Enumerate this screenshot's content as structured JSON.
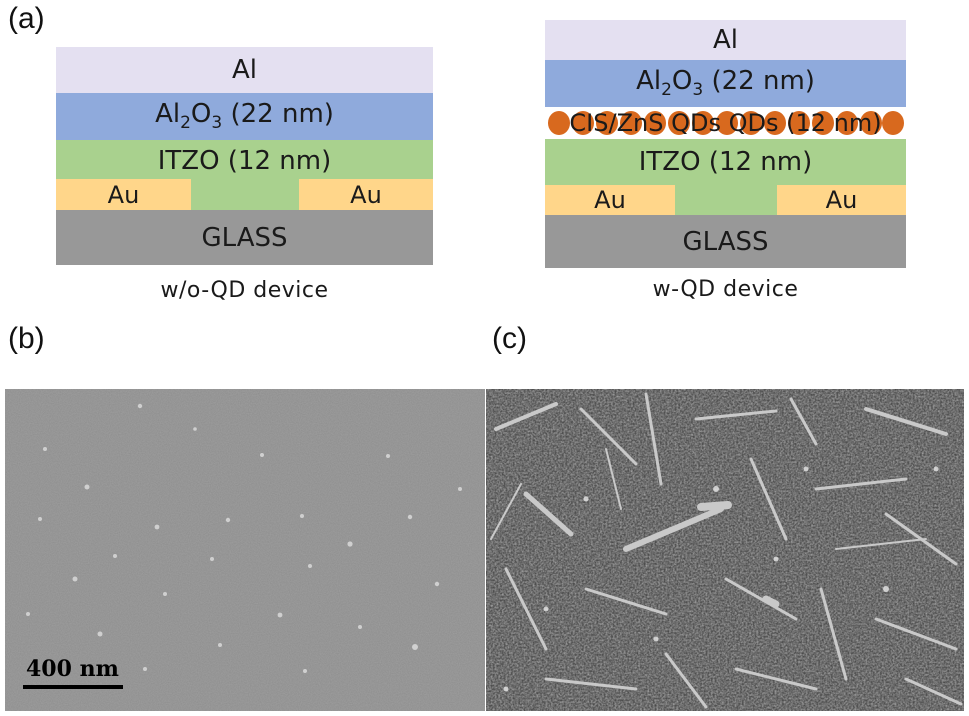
{
  "labels": {
    "a": "(a)",
    "b": "(b)",
    "c": "(c)"
  },
  "left_device": {
    "layers": {
      "al": "Al",
      "al2o3": {
        "pre": "Al",
        "sub1": "2",
        "mid": "O",
        "sub2": "3",
        "post": " (22 nm)"
      },
      "itzo": "ITZO (12 nm)",
      "au_left": "Au",
      "au_right": "Au",
      "glass": "GLASS"
    },
    "caption": "w/o-QD device"
  },
  "right_device": {
    "layers": {
      "al": "Al",
      "al2o3": {
        "pre": "Al",
        "sub1": "2",
        "mid": "O",
        "sub2": "3",
        "post": " (22 nm)"
      },
      "qd": "CIS/ZnS QDs QDs (12 nm)",
      "itzo": "ITZO (12 nm)",
      "au_left": "Au",
      "au_right": "Au",
      "glass": "GLASS"
    },
    "caption": "w-QD device"
  },
  "scale_bar": "400 nm",
  "colors": {
    "al": "#e4e0f1",
    "al2o3": "#8faadc",
    "itzo": "#a9d18e",
    "au": "#ffd68a",
    "glass": "#989898",
    "qd": "#d8691e"
  }
}
